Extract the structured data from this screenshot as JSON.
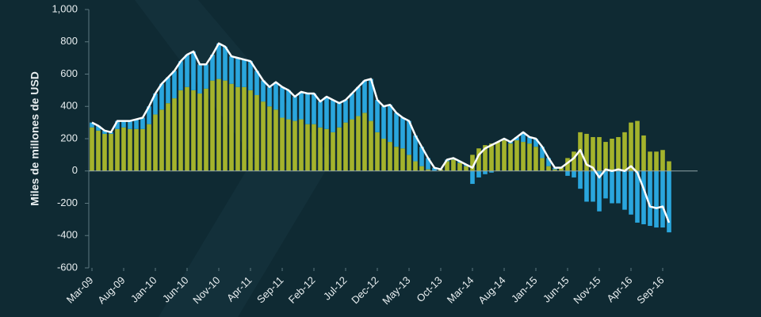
{
  "chart_data": {
    "type": "stacked-bar-line",
    "y_label": "Miles de millones de USD",
    "categories": [
      "Mar-09",
      null,
      null,
      null,
      null,
      "Aug-09",
      null,
      null,
      null,
      null,
      "Jan-10",
      null,
      null,
      null,
      null,
      "Jun-10",
      null,
      null,
      null,
      null,
      "Nov-10",
      null,
      null,
      null,
      null,
      "Apr-11",
      null,
      null,
      null,
      null,
      "Sep-11",
      null,
      null,
      null,
      null,
      "Feb-12",
      null,
      null,
      null,
      null,
      "Jul-12",
      null,
      null,
      null,
      null,
      "Dec-12",
      null,
      null,
      null,
      null,
      "May-13",
      null,
      null,
      null,
      null,
      "Oct-13",
      null,
      null,
      null,
      null,
      "Mar-14",
      null,
      null,
      null,
      null,
      "Aug-14",
      null,
      null,
      null,
      null,
      "Jan-15",
      null,
      null,
      null,
      null,
      "Jun-15",
      null,
      null,
      null,
      null,
      "Nov-15",
      null,
      null,
      null,
      null,
      "Apr-16",
      null,
      null,
      null,
      null,
      "Sep-16",
      null
    ],
    "series": [
      {
        "type": "bar",
        "color": "#a4b32c",
        "values": [
          270,
          250,
          230,
          230,
          260,
          270,
          260,
          260,
          260,
          290,
          350,
          380,
          420,
          450,
          500,
          520,
          500,
          480,
          510,
          560,
          570,
          560,
          540,
          520,
          520,
          500,
          470,
          430,
          400,
          380,
          330,
          320,
          310,
          320,
          290,
          290,
          270,
          260,
          240,
          270,
          300,
          320,
          340,
          360,
          310,
          240,
          200,
          180,
          150,
          140,
          100,
          60,
          30,
          10,
          0,
          10,
          60,
          70,
          50,
          30,
          100,
          140,
          160,
          170,
          180,
          190,
          170,
          190,
          180,
          170,
          150,
          80,
          30,
          10,
          20,
          80,
          120,
          240,
          230,
          210,
          210,
          180,
          200,
          210,
          240,
          300,
          310,
          220,
          120,
          120,
          130,
          60
        ]
      },
      {
        "type": "bar",
        "color": "#2aa6dd",
        "values": [
          30,
          30,
          20,
          10,
          50,
          40,
          50,
          60,
          70,
          110,
          130,
          160,
          160,
          170,
          180,
          200,
          240,
          180,
          150,
          160,
          220,
          210,
          170,
          180,
          170,
          180,
          150,
          130,
          120,
          170,
          190,
          180,
          150,
          170,
          190,
          190,
          160,
          200,
          200,
          150,
          140,
          160,
          180,
          200,
          260,
          200,
          200,
          230,
          210,
          190,
          210,
          160,
          120,
          70,
          20,
          0,
          10,
          10,
          10,
          10,
          -80,
          -40,
          -20,
          -10,
          0,
          10,
          10,
          20,
          60,
          40,
          50,
          70,
          50,
          10,
          0,
          -30,
          -40,
          -110,
          -190,
          -190,
          -250,
          -170,
          -200,
          -200,
          -240,
          -270,
          -320,
          -330,
          -340,
          -350,
          -350,
          -380
        ]
      },
      {
        "type": "line",
        "color": "#ffffff",
        "values": [
          300,
          280,
          250,
          240,
          310,
          310,
          310,
          320,
          330,
          400,
          480,
          540,
          580,
          620,
          680,
          720,
          740,
          660,
          660,
          720,
          790,
          770,
          710,
          700,
          690,
          680,
          620,
          560,
          520,
          550,
          520,
          500,
          460,
          490,
          480,
          480,
          430,
          460,
          440,
          420,
          440,
          480,
          520,
          560,
          570,
          440,
          400,
          410,
          360,
          330,
          310,
          220,
          150,
          80,
          20,
          10,
          70,
          80,
          60,
          40,
          20,
          100,
          140,
          160,
          180,
          200,
          180,
          210,
          240,
          210,
          200,
          150,
          80,
          20,
          20,
          50,
          80,
          130,
          40,
          20,
          -40,
          10,
          0,
          10,
          0,
          30,
          -10,
          -110,
          -220,
          -230,
          -220,
          -320
        ]
      }
    ],
    "ylim": [
      -600,
      1000
    ],
    "yticks": [
      {
        "value": 1000,
        "label": "1,000"
      },
      800,
      600,
      400,
      200,
      0,
      -200,
      -400,
      -600
    ]
  }
}
